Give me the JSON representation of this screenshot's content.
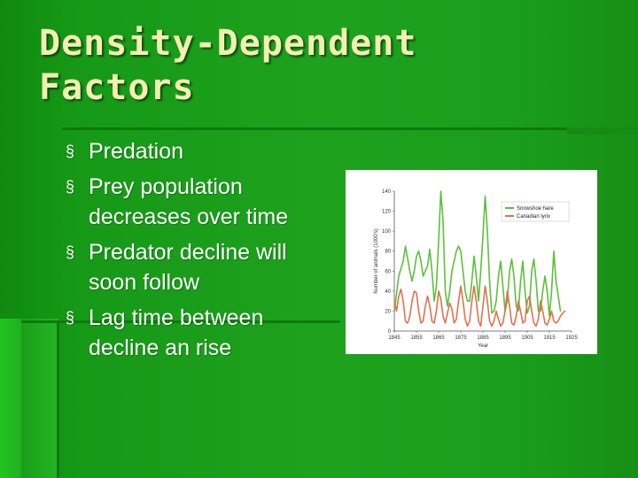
{
  "slide": {
    "title_line1": "Density-Dependent",
    "title_line2": "Factors",
    "bullets": [
      "Predation",
      "Prey population decreases over time",
      "Predator decline will soon follow",
      "Lag time between decline an rise"
    ],
    "bullet_marker": "§"
  },
  "colors": {
    "hare": "#5cc13a",
    "lynx": "#e0724f",
    "title": "#f2efb0"
  },
  "chart_data": {
    "type": "line",
    "xlabel": "Year",
    "ylabel": "Number of animals (1000's)",
    "xlim": [
      1845,
      1925
    ],
    "ylim": [
      0,
      140
    ],
    "xticks": [
      1845,
      1855,
      1865,
      1875,
      1885,
      1895,
      1905,
      1915,
      1925
    ],
    "yticks": [
      0,
      20,
      40,
      60,
      80,
      100,
      120,
      140
    ],
    "legend_position": "top-right",
    "series": [
      {
        "name": "Snowshoe hare",
        "color_key": "hare",
        "x": [
          1845,
          1847,
          1849,
          1850,
          1852,
          1853,
          1854,
          1855,
          1856,
          1857,
          1858,
          1860,
          1861,
          1862,
          1863,
          1864,
          1865,
          1866,
          1867,
          1868,
          1869,
          1870,
          1871,
          1873,
          1874,
          1875,
          1876,
          1877,
          1878,
          1879,
          1880,
          1881,
          1882,
          1883,
          1884,
          1885,
          1886,
          1887,
          1888,
          1889,
          1890,
          1891,
          1892,
          1893,
          1894,
          1895,
          1896,
          1897,
          1898,
          1899,
          1900,
          1901,
          1902,
          1903,
          1904,
          1905,
          1906,
          1907,
          1908,
          1909,
          1910,
          1911,
          1912,
          1913,
          1914,
          1915,
          1916,
          1917,
          1918,
          1920
        ],
        "y": [
          20,
          55,
          70,
          85,
          60,
          50,
          60,
          75,
          80,
          70,
          55,
          65,
          82,
          60,
          30,
          45,
          90,
          140,
          110,
          40,
          25,
          40,
          60,
          80,
          85,
          80,
          60,
          40,
          30,
          30,
          50,
          75,
          55,
          30,
          60,
          95,
          135,
          100,
          50,
          18,
          20,
          30,
          55,
          70,
          45,
          20,
          30,
          60,
          72,
          55,
          25,
          20,
          50,
          70,
          40,
          18,
          25,
          60,
          72,
          50,
          20,
          20,
          40,
          55,
          40,
          15,
          40,
          80,
          50,
          20
        ]
      },
      {
        "name": "Canadian lynx",
        "color_key": "lynx",
        "x": [
          1845,
          1846,
          1847,
          1848,
          1849,
          1850,
          1851,
          1852,
          1853,
          1854,
          1855,
          1856,
          1857,
          1858,
          1859,
          1860,
          1861,
          1862,
          1863,
          1864,
          1865,
          1866,
          1867,
          1868,
          1869,
          1870,
          1871,
          1872,
          1873,
          1874,
          1875,
          1876,
          1877,
          1878,
          1879,
          1880,
          1881,
          1882,
          1883,
          1884,
          1885,
          1886,
          1887,
          1888,
          1889,
          1890,
          1891,
          1892,
          1893,
          1894,
          1895,
          1896,
          1897,
          1898,
          1899,
          1900,
          1901,
          1902,
          1903,
          1904,
          1905,
          1906,
          1907,
          1908,
          1909,
          1910,
          1911,
          1912,
          1913,
          1914,
          1915,
          1916,
          1917,
          1918,
          1919,
          1920,
          1921,
          1922
        ],
        "y": [
          30,
          20,
          35,
          42,
          30,
          10,
          8,
          15,
          30,
          40,
          38,
          20,
          8,
          10,
          25,
          35,
          25,
          10,
          8,
          20,
          40,
          32,
          15,
          8,
          18,
          28,
          22,
          8,
          12,
          30,
          45,
          30,
          12,
          5,
          10,
          30,
          45,
          30,
          10,
          5,
          25,
          45,
          30,
          10,
          5,
          10,
          20,
          12,
          5,
          8,
          20,
          40,
          25,
          8,
          6,
          15,
          30,
          20,
          8,
          10,
          30,
          35,
          20,
          8,
          5,
          12,
          30,
          20,
          8,
          6,
          12,
          20,
          10,
          8,
          10,
          15,
          18,
          20
        ]
      }
    ]
  }
}
